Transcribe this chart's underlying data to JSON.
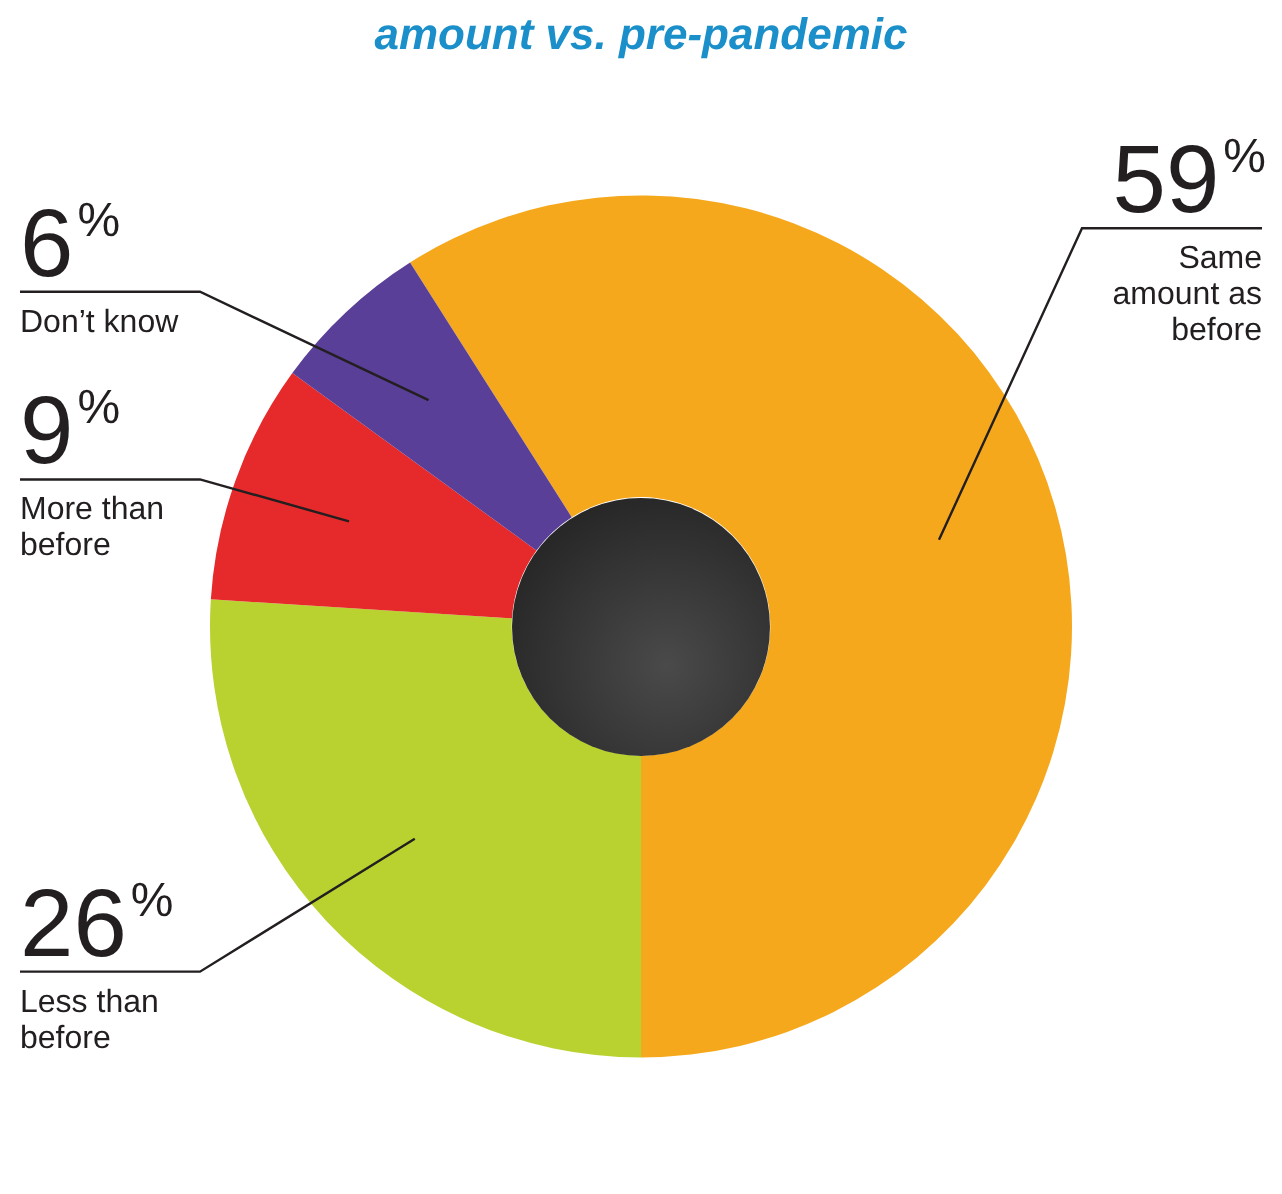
{
  "chart_data": {
    "type": "donut",
    "title": "amount vs. pre-pandemic",
    "categories": [
      "Same amount as before",
      "Less than before",
      "More than before",
      "Don’t know"
    ],
    "values": [
      59,
      26,
      9,
      6
    ],
    "colors": [
      "#f6a81d",
      "#b9d230",
      "#e6292b",
      "#5a3f98"
    ],
    "value_labels": [
      "59%",
      "26%",
      "9%",
      "6%"
    ]
  }
}
